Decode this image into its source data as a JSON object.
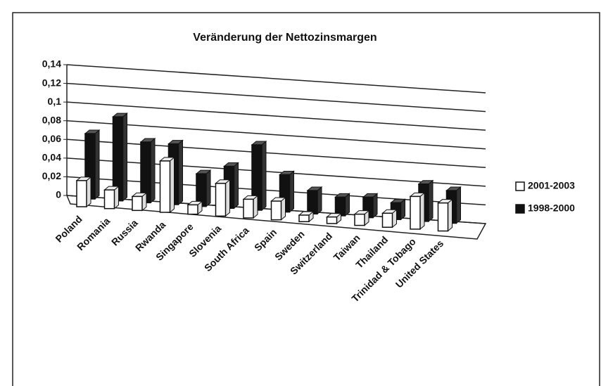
{
  "chart_data": {
    "type": "bar3d",
    "title": "Veränderung der Nettozinsmargen",
    "categories": [
      "Poland",
      "Romania",
      "Russia",
      "Rwanda",
      "Singapore",
      "Slovenia",
      "South Africa",
      "Spain",
      "Sweden",
      "Switzerland",
      "Taiwan",
      "Thailand",
      "Trinidad & Tobago",
      "United States"
    ],
    "series": [
      {
        "name": "2001-2003",
        "color": "#ffffff",
        "values": [
          0.028,
          0.02,
          0.015,
          0.055,
          0.01,
          0.035,
          0.02,
          0.02,
          0.007,
          0.007,
          0.012,
          0.015,
          0.035,
          0.03
        ]
      },
      {
        "name": "1998-2000",
        "color": "#111111",
        "values": [
          0.07,
          0.09,
          0.065,
          0.065,
          0.035,
          0.045,
          0.07,
          0.04,
          0.025,
          0.02,
          0.022,
          0.018,
          0.04,
          0.035
        ]
      }
    ],
    "ylim": [
      0,
      0.14
    ],
    "yticks": [
      0,
      {
        "value": 0.02,
        "label": "0,02"
      },
      {
        "value": 0.04,
        "label": "0,04"
      },
      {
        "value": 0.06,
        "label": "0,06"
      },
      {
        "value": 0.08,
        "label": "0,08"
      },
      {
        "value": 0.1,
        "label": "0,1"
      },
      {
        "value": 0.12,
        "label": "0,12"
      },
      {
        "value": 0.14,
        "label": "0,14"
      }
    ],
    "grid": true
  }
}
